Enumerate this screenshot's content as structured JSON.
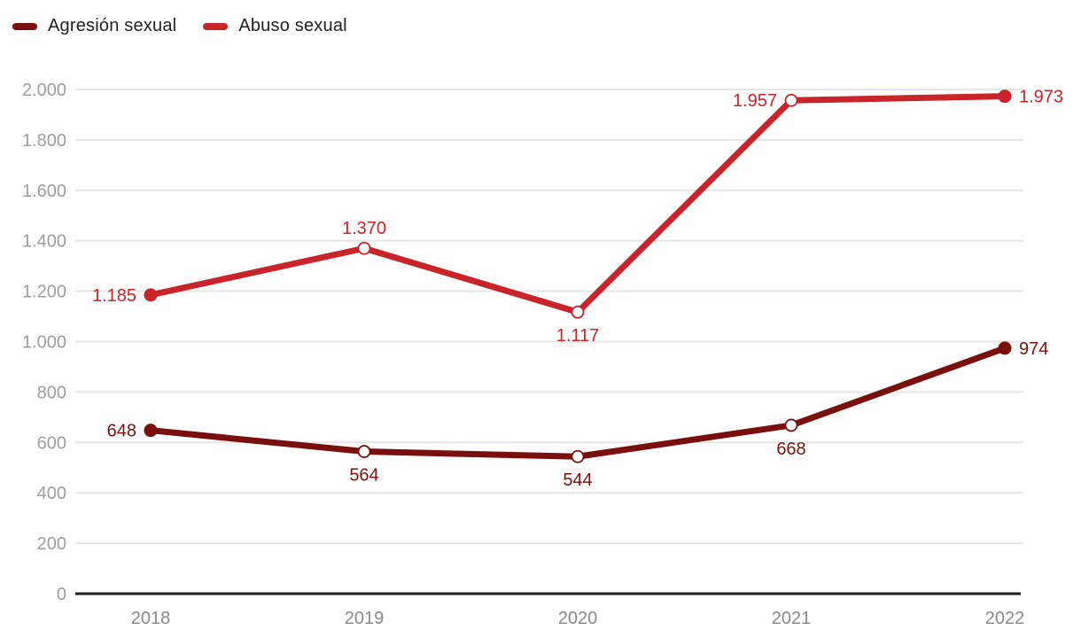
{
  "chart_data": {
    "type": "line",
    "categories": [
      "2018",
      "2019",
      "2020",
      "2021",
      "2022"
    ],
    "series": [
      {
        "name": "Agresión sexual",
        "color": "#7a100e",
        "values": [
          648,
          564,
          544,
          668,
          974
        ],
        "labels": [
          "648",
          "564",
          "544",
          "668",
          "974"
        ],
        "label_positions": [
          "left",
          "below",
          "below",
          "below",
          "right"
        ],
        "point_styles": [
          "filled",
          "open",
          "open",
          "open",
          "filled"
        ]
      },
      {
        "name": "Abuso sexual",
        "color": "#c9242a",
        "values": [
          1185,
          1370,
          1117,
          1957,
          1973
        ],
        "labels": [
          "1.185",
          "1.370",
          "1.117",
          "1.957",
          "1.973"
        ],
        "label_positions": [
          "left",
          "above",
          "below",
          "left",
          "right"
        ],
        "point_styles": [
          "filled",
          "open",
          "open",
          "open",
          "filled"
        ]
      }
    ],
    "title": "",
    "xlabel": "",
    "ylabel": "",
    "ylim": [
      0,
      2000
    ],
    "ytick_step": 200,
    "ytick_labels": [
      "0",
      "200",
      "400",
      "600",
      "800",
      "1.000",
      "1.200",
      "1.400",
      "1.600",
      "1.800",
      "2.000"
    ],
    "grid": true,
    "legend_position": "top-left"
  },
  "colors": {
    "background": "#ffffff",
    "gridline": "#e6e6e6",
    "axis_line": "#1f1f1f",
    "y_tick_label": "#9e9e9e",
    "x_tick_label": "#8a8a8a",
    "legend_text": "#212121"
  }
}
